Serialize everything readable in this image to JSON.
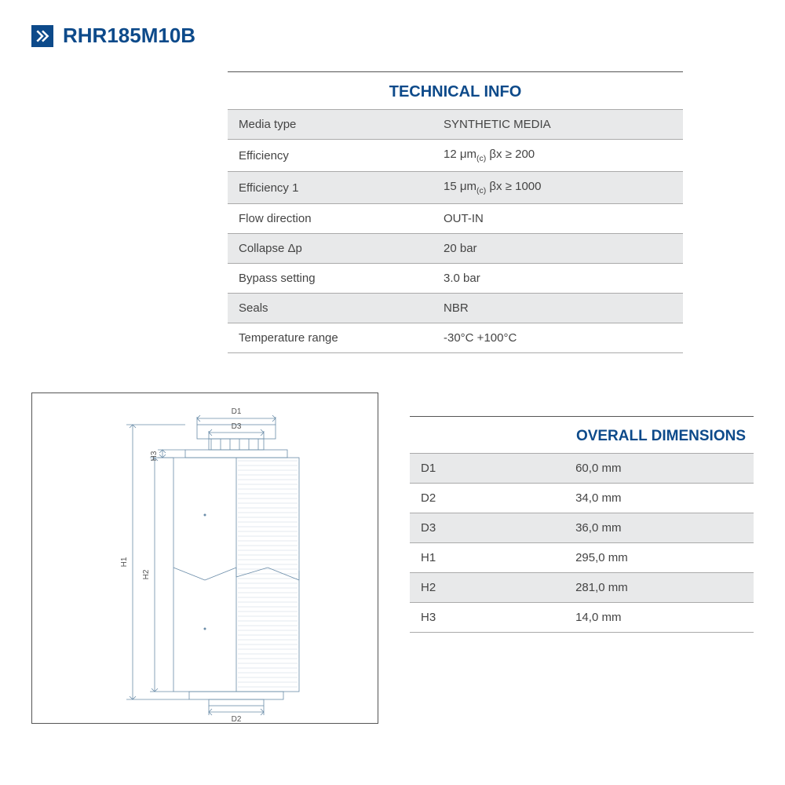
{
  "header": {
    "product_code": "RHR185M10B",
    "brand_color": "#0d4a8a"
  },
  "technical_info": {
    "title": "TECHNICAL INFO",
    "rows": [
      {
        "label": "Media type",
        "value": "SYNTHETIC MEDIA",
        "shaded": true
      },
      {
        "label": "Efficiency",
        "value_html": "12 μm<sub>(c)</sub> βx ≥ 200",
        "shaded": false
      },
      {
        "label": "Efficiency 1",
        "value_html": "15 μm<sub>(c)</sub> βx ≥ 1000",
        "shaded": true
      },
      {
        "label": "Flow direction",
        "value": "OUT-IN",
        "shaded": false
      },
      {
        "label": "Collapse Δp",
        "value": "20 bar",
        "shaded": true
      },
      {
        "label": "Bypass setting",
        "value": "3.0 bar",
        "shaded": false
      },
      {
        "label": "Seals",
        "value": "NBR",
        "shaded": true
      },
      {
        "label": "Temperature range",
        "value": "-30°C +100°C",
        "shaded": false
      }
    ]
  },
  "dimensions": {
    "title": "OVERALL DIMENSIONS",
    "rows": [
      {
        "label": "D1",
        "value": "60,0 mm",
        "shaded": true
      },
      {
        "label": "D2",
        "value": "34,0 mm",
        "shaded": false
      },
      {
        "label": "D3",
        "value": "36,0 mm",
        "shaded": true
      },
      {
        "label": "H1",
        "value": "295,0 mm",
        "shaded": false
      },
      {
        "label": "H2",
        "value": "281,0 mm",
        "shaded": true
      },
      {
        "label": "H3",
        "value": "14,0 mm",
        "shaded": false
      }
    ]
  },
  "drawing": {
    "labels": {
      "d1": "D1",
      "d2": "D2",
      "d3": "D3",
      "h1": "H1",
      "h2": "H2",
      "h3": "H3"
    },
    "stroke_color": "#6a8ca8",
    "stroke_width": 0.8
  }
}
